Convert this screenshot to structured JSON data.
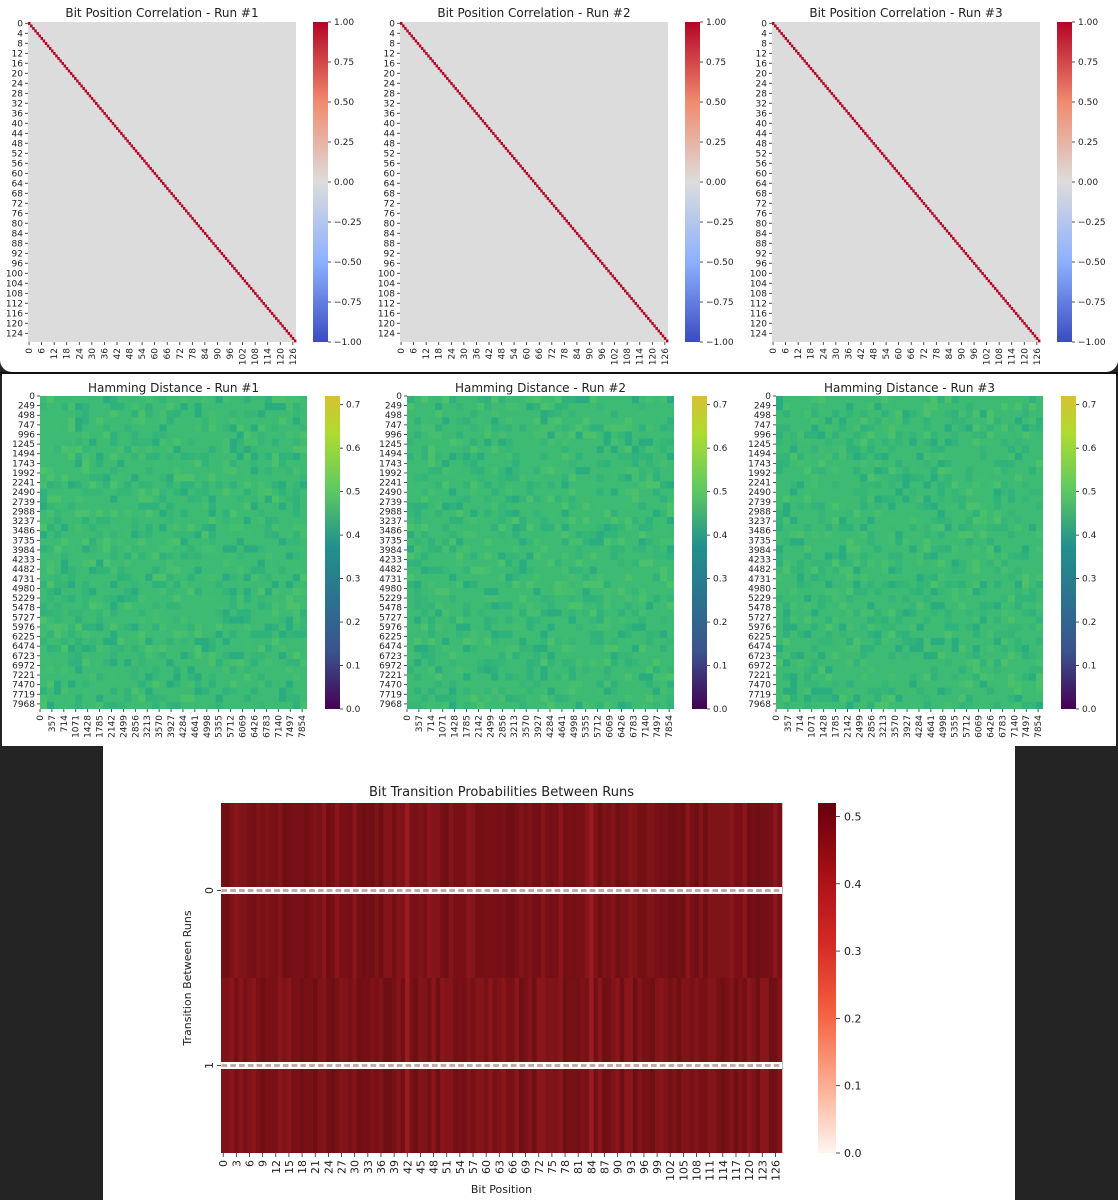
{
  "chart_data": [
    {
      "type": "heatmap",
      "title": "Bit Position Correlation - Run #1",
      "matrix": "identity 128x128, off-diagonal ≈ 0.0",
      "size": 128,
      "diagonal_value": 1.0,
      "offdiag_value": 0.0,
      "y_ticks": [
        "0",
        "4",
        "8",
        "12",
        "16",
        "20",
        "24",
        "28",
        "32",
        "36",
        "40",
        "44",
        "48",
        "52",
        "56",
        "60",
        "64",
        "68",
        "72",
        "76",
        "80",
        "84",
        "88",
        "92",
        "96",
        "100",
        "104",
        "108",
        "112",
        "116",
        "120",
        "124"
      ],
      "x_ticks": [
        "0",
        "6",
        "12",
        "18",
        "24",
        "30",
        "36",
        "42",
        "48",
        "54",
        "60",
        "66",
        "72",
        "78",
        "84",
        "90",
        "96",
        "102",
        "108",
        "114",
        "120",
        "126"
      ],
      "colorbar": {
        "colormap": "coolwarm",
        "min": -1.0,
        "max": 1.0,
        "ticks": [
          "1.00",
          "0.75",
          "0.50",
          "0.25",
          "0.00",
          "−0.25",
          "−0.50",
          "−0.75",
          "−1.00"
        ]
      }
    },
    {
      "type": "heatmap",
      "title": "Bit Position Correlation - Run #2",
      "size": 128,
      "diagonal_value": 1.0,
      "offdiag_value": 0.0,
      "y_ticks": [
        "0",
        "4",
        "8",
        "12",
        "16",
        "20",
        "24",
        "28",
        "32",
        "36",
        "40",
        "44",
        "48",
        "52",
        "56",
        "60",
        "64",
        "68",
        "72",
        "76",
        "80",
        "84",
        "88",
        "92",
        "96",
        "100",
        "104",
        "108",
        "112",
        "116",
        "120",
        "124"
      ],
      "x_ticks": [
        "0",
        "6",
        "12",
        "18",
        "24",
        "30",
        "36",
        "42",
        "48",
        "54",
        "60",
        "66",
        "72",
        "78",
        "84",
        "90",
        "96",
        "102",
        "108",
        "114",
        "120",
        "126"
      ],
      "colorbar": {
        "colormap": "coolwarm",
        "min": -1.0,
        "max": 1.0,
        "ticks": [
          "1.00",
          "0.75",
          "0.50",
          "0.25",
          "0.00",
          "−0.25",
          "−0.50",
          "−0.75",
          "−1.00"
        ]
      }
    },
    {
      "type": "heatmap",
      "title": "Bit Position Correlation - Run #3",
      "size": 128,
      "diagonal_value": 1.0,
      "offdiag_value": 0.0,
      "y_ticks": [
        "0",
        "4",
        "8",
        "12",
        "16",
        "20",
        "24",
        "28",
        "32",
        "36",
        "40",
        "44",
        "48",
        "52",
        "56",
        "60",
        "64",
        "68",
        "72",
        "76",
        "80",
        "84",
        "88",
        "92",
        "96",
        "100",
        "104",
        "108",
        "112",
        "116",
        "120",
        "124"
      ],
      "x_ticks": [
        "0",
        "6",
        "12",
        "18",
        "24",
        "30",
        "36",
        "42",
        "48",
        "54",
        "60",
        "66",
        "72",
        "78",
        "84",
        "90",
        "96",
        "102",
        "108",
        "114",
        "120",
        "126"
      ],
      "colorbar": {
        "colormap": "coolwarm",
        "min": -1.0,
        "max": 1.0,
        "ticks": [
          "1.00",
          "0.75",
          "0.50",
          "0.25",
          "0.00",
          "−0.25",
          "−0.50",
          "−0.75",
          "−1.00"
        ]
      }
    },
    {
      "type": "heatmap",
      "title": "Hamming Distance - Run #1",
      "typical_value": 0.5,
      "y_ticks": [
        "0",
        "249",
        "498",
        "747",
        "996",
        "1245",
        "1494",
        "1743",
        "1992",
        "2241",
        "2490",
        "2739",
        "2988",
        "3237",
        "3486",
        "3735",
        "3984",
        "4233",
        "4482",
        "4731",
        "4980",
        "5229",
        "5478",
        "5727",
        "5976",
        "6225",
        "6474",
        "6723",
        "6972",
        "7221",
        "7470",
        "7719",
        "7968"
      ],
      "x_ticks": [
        "0",
        "357",
        "714",
        "1071",
        "1428",
        "1785",
        "2142",
        "2499",
        "2856",
        "3213",
        "3570",
        "3927",
        "4284",
        "4641",
        "4998",
        "5355",
        "5712",
        "6069",
        "6426",
        "6783",
        "7140",
        "7497",
        "7854"
      ],
      "colorbar": {
        "colormap": "viridis",
        "min": 0.0,
        "max": 0.72,
        "ticks": [
          "0.7",
          "0.6",
          "0.5",
          "0.4",
          "0.3",
          "0.2",
          "0.1",
          "0.0"
        ]
      }
    },
    {
      "type": "heatmap",
      "title": "Hamming Distance - Run #2",
      "typical_value": 0.5,
      "y_ticks": [
        "0",
        "249",
        "498",
        "747",
        "996",
        "1245",
        "1494",
        "1743",
        "1992",
        "2241",
        "2490",
        "2739",
        "2988",
        "3237",
        "3486",
        "3735",
        "3984",
        "4233",
        "4482",
        "4731",
        "4980",
        "5229",
        "5478",
        "5727",
        "5976",
        "6225",
        "6474",
        "6723",
        "6972",
        "7221",
        "7470",
        "7719",
        "7968"
      ],
      "x_ticks": [
        "0",
        "357",
        "714",
        "1071",
        "1428",
        "1785",
        "2142",
        "2499",
        "2856",
        "3213",
        "3570",
        "3927",
        "4284",
        "4641",
        "4998",
        "5355",
        "5712",
        "6069",
        "6426",
        "6783",
        "7140",
        "7497",
        "7854"
      ],
      "colorbar": {
        "colormap": "viridis",
        "min": 0.0,
        "max": 0.72,
        "ticks": [
          "0.7",
          "0.6",
          "0.5",
          "0.4",
          "0.3",
          "0.2",
          "0.1",
          "0.0"
        ]
      }
    },
    {
      "type": "heatmap",
      "title": "Hamming Distance - Run #3",
      "typical_value": 0.5,
      "y_ticks": [
        "0",
        "249",
        "498",
        "747",
        "996",
        "1245",
        "1494",
        "1743",
        "1992",
        "2241",
        "2490",
        "2739",
        "2988",
        "3237",
        "3486",
        "3735",
        "3984",
        "4233",
        "4482",
        "4731",
        "4980",
        "5229",
        "5478",
        "5727",
        "5976",
        "6225",
        "6474",
        "6723",
        "6972",
        "7221",
        "7470",
        "7719",
        "7968"
      ],
      "x_ticks": [
        "0",
        "357",
        "714",
        "1071",
        "1428",
        "1785",
        "2142",
        "2499",
        "2856",
        "3213",
        "3570",
        "3927",
        "4284",
        "4641",
        "4998",
        "5355",
        "5712",
        "6069",
        "6426",
        "6783",
        "7140",
        "7497",
        "7854"
      ],
      "colorbar": {
        "colormap": "viridis",
        "min": 0.0,
        "max": 0.72,
        "ticks": [
          "0.7",
          "0.6",
          "0.5",
          "0.4",
          "0.3",
          "0.2",
          "0.1",
          "0.0"
        ]
      }
    },
    {
      "type": "heatmap",
      "title": "Bit Transition Probabilities Between Runs",
      "xlabel": "Bit Position",
      "ylabel": "Transition Between Runs",
      "rows": [
        "0",
        "1"
      ],
      "columns": 128,
      "typical_value": 0.5,
      "x_ticks": [
        "0",
        "3",
        "6",
        "9",
        "12",
        "15",
        "18",
        "21",
        "24",
        "27",
        "30",
        "33",
        "36",
        "39",
        "42",
        "45",
        "48",
        "51",
        "54",
        "57",
        "60",
        "63",
        "66",
        "69",
        "72",
        "75",
        "78",
        "81",
        "84",
        "87",
        "90",
        "93",
        "96",
        "99",
        "102",
        "105",
        "108",
        "111",
        "114",
        "117",
        "120",
        "123",
        "126"
      ],
      "colorbar": {
        "colormap": "Reds",
        "min": 0.0,
        "max": 0.52,
        "ticks": [
          "0.5",
          "0.4",
          "0.3",
          "0.2",
          "0.1",
          "0.0"
        ]
      }
    }
  ]
}
